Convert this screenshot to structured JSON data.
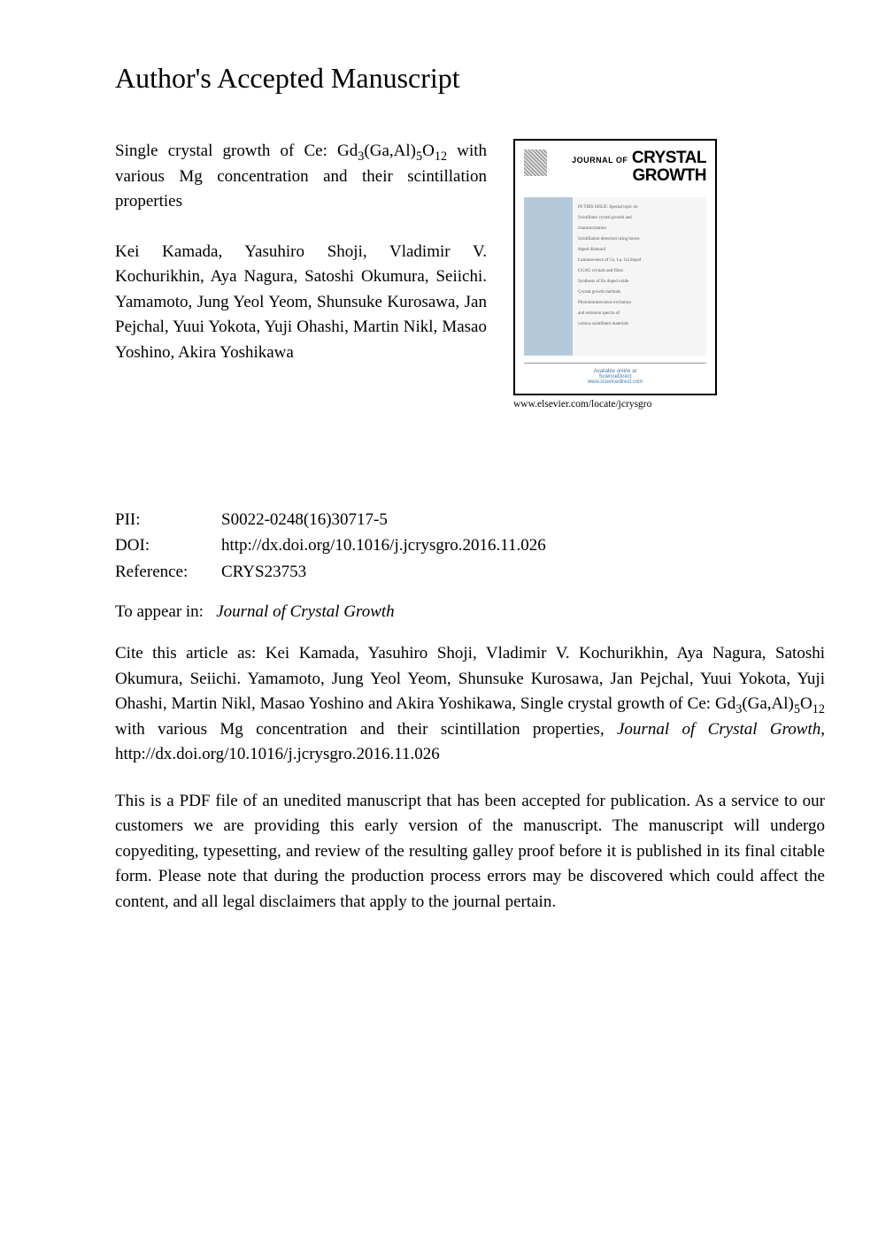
{
  "header": {
    "title": "Author's Accepted Manuscript"
  },
  "article": {
    "title_html": "Single crystal growth of Ce: Gd<sub>3</sub>(Ga,Al)<sub>5</sub>O<sub>12</sub> with various Mg concentration and their scintillation properties",
    "authors": "Kei Kamada, Yasuhiro Shoji, Vladimir V. Kochurikhin, Aya Nagura, Satoshi Okumura, Seiichi. Yamamoto, Jung Yeol Yeom, Shunsuke Kurosawa, Jan Pejchal, Yuui Yokota, Yuji Ohashi, Martin Nikl, Masao Yoshino, Akira Yoshikawa"
  },
  "cover": {
    "journal_of": "JOURNAL OF",
    "journal_name_line1": "CRYSTAL",
    "journal_name_line2": "GROWTH",
    "body_lines": [
      "IN THIS ISSUE: Special topic on",
      "Scintillator crystal growth and",
      "characterization",
      "Scintillation detection using boron-",
      "doped diamond",
      "Luminescence of Ce, Lu, Gd doped",
      "GGAG crystals and films",
      "Synthesis of Eu doped oxide",
      "Crystal growth methods",
      "Photoluminescence excitation",
      "and emission spectra of",
      "various scintillator materials"
    ],
    "footer_line1": "Available online at",
    "footer_line2": "ScienceDirect",
    "footer_line3": "www.sciencedirect.com",
    "caption": "www.elsevier.com/locate/jcrysgro",
    "colors": {
      "border": "#000000",
      "body_left_bg": "#b5c9d8",
      "body_right_bg": "#f5f5f5",
      "footer_text": "#4a7aa5"
    }
  },
  "meta": {
    "pii_label": "PII:",
    "pii": "S0022-0248(16)30717-5",
    "doi_label": "DOI:",
    "doi": "http://dx.doi.org/10.1016/j.jcrysgro.2016.11.026",
    "ref_label": "Reference:",
    "reference": "CRYS23753"
  },
  "appear": {
    "label": "To appear in:",
    "journal": "Journal of Crystal Growth"
  },
  "citation": {
    "text_html": "Cite this article as: Kei Kamada, Yasuhiro Shoji, Vladimir V. Kochurikhin, Aya Nagura, Satoshi Okumura, Seiichi. Yamamoto, Jung Yeol Yeom, Shunsuke Kurosawa, Jan Pejchal, Yuui Yokota, Yuji Ohashi, Martin Nikl, Masao Yoshino and Akira Yoshikawa, Single crystal growth of Ce: Gd<sub>3</sub>(Ga,Al)<sub>5</sub>O<sub>12</sub> with various Mg concentration and their scintillation properties, <span class=\"journal\">Journal of Crystal Growth,</span> http://dx.doi.org/10.1016/j.jcrysgro.2016.11.026"
  },
  "disclaimer": {
    "text": "This is a PDF file of an unedited manuscript that has been accepted for publication. As a service to our customers we are providing this early version of the manuscript. The manuscript will undergo copyediting, typesetting, and review of the resulting galley proof before it is published in its final citable form. Please note that during the production process errors may be discovered which could affect the content, and all legal disclaimers that apply to the journal pertain."
  },
  "style": {
    "body_bg": "#ffffff",
    "text_color": "#000000",
    "header_fontsize": 32,
    "body_fontsize": 19,
    "cover_width": 230,
    "cover_height": 290
  }
}
